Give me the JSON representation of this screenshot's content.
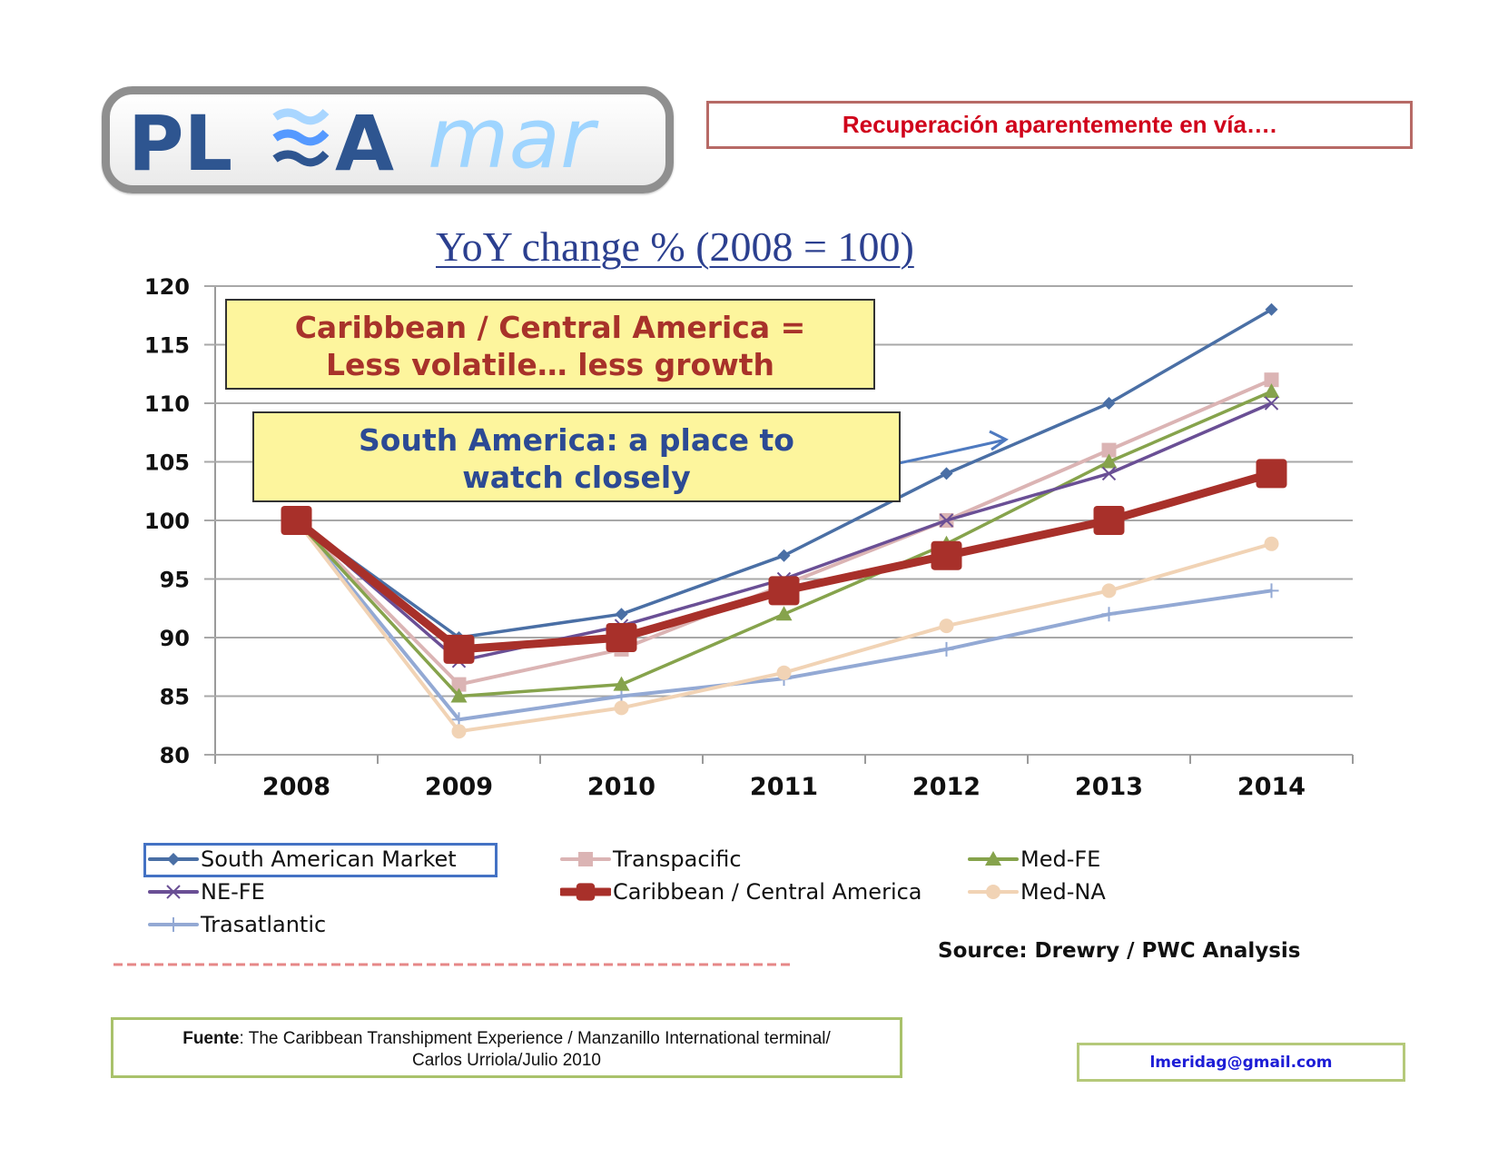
{
  "logo": {
    "text_bold": "PL",
    "text_bold2": "A",
    "text_light": "mar",
    "wave_icon": "waves-icon"
  },
  "header": {
    "title": "Recuperación aparentemente en vía…."
  },
  "callouts": {
    "caribbean": {
      "line1": "Caribbean / Central America =",
      "line2": "Less volatile… less growth"
    },
    "south_america": {
      "line1": "South America: a place to",
      "line2": "watch closely"
    }
  },
  "source": "Source: Drewry / PWC Analysis",
  "footer": {
    "fuente_label": "Fuente",
    "fuente_text": ": The Caribbean Transhipment Experience / Manzanillo International terminal/",
    "fuente_line2": "Carlos Urriola/Julio 2010",
    "email": "lmeridag@gmail.com"
  },
  "chart_data": {
    "type": "line",
    "title": "YoY change % (2008 = 100)",
    "xlabel": "",
    "ylabel": "",
    "categories": [
      "2008",
      "2009",
      "2010",
      "2011",
      "2012",
      "2013",
      "2014"
    ],
    "ylim": [
      80,
      120
    ],
    "yticks": [
      80,
      85,
      90,
      95,
      100,
      105,
      110,
      115,
      120
    ],
    "grid": true,
    "legend_position": "bottom",
    "series": [
      {
        "name": "South American Market",
        "color": "#4a6fa5",
        "marker": "diamond",
        "values": [
          100,
          90,
          92,
          97,
          104,
          110,
          118
        ]
      },
      {
        "name": "Transpacific",
        "color": "#dbb4b4",
        "marker": "square",
        "values": [
          100,
          86,
          89,
          94.5,
          100,
          106,
          112
        ]
      },
      {
        "name": "Med-FE",
        "color": "#86a34c",
        "marker": "triangle",
        "values": [
          100,
          85,
          86,
          92,
          98,
          105,
          111
        ]
      },
      {
        "name": "NE-FE",
        "color": "#6a4f95",
        "marker": "x",
        "values": [
          100,
          88,
          91,
          95,
          100,
          104,
          110
        ]
      },
      {
        "name": "Caribbean / Central America",
        "color": "#a8302a",
        "marker": "bigsquare",
        "values": [
          100,
          89,
          90,
          94,
          97,
          100,
          104
        ]
      },
      {
        "name": "Med-NA",
        "color": "#f1d3b5",
        "marker": "circle",
        "values": [
          100,
          82,
          84,
          87,
          91,
          94,
          98
        ]
      },
      {
        "name": "Trasatlantic",
        "color": "#93a9d4",
        "marker": "plus",
        "values": [
          100,
          83,
          85,
          86.5,
          89,
          92,
          94
        ]
      }
    ],
    "annotations": [
      "Caribbean / Central America = Less volatile… less growth",
      "South America: a place to watch closely"
    ]
  }
}
